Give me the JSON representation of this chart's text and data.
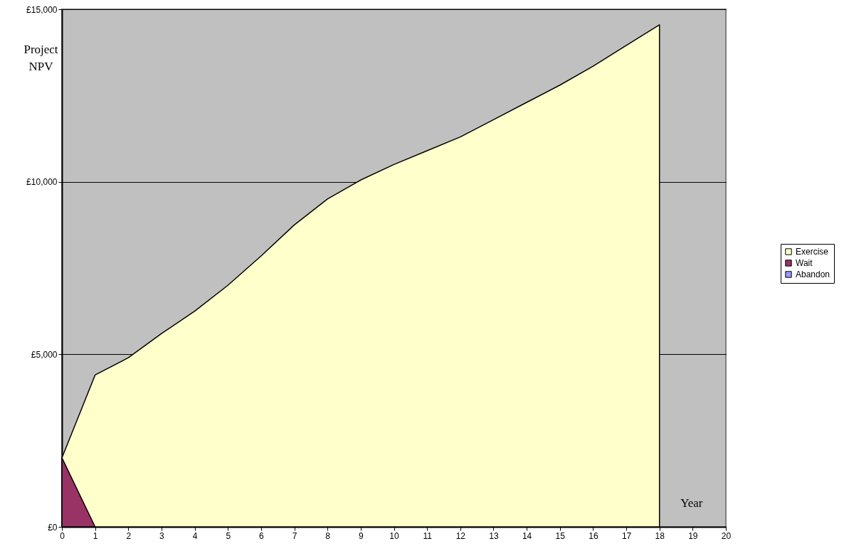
{
  "chart_data": {
    "type": "area",
    "xlabel": "Year",
    "ylabel": "Project NPV",
    "x": [
      0,
      1,
      2,
      3,
      4,
      5,
      6,
      7,
      8,
      9,
      10,
      11,
      12,
      13,
      14,
      15,
      16,
      17,
      18
    ],
    "xlim": [
      0,
      20
    ],
    "xticks": [
      0,
      1,
      2,
      3,
      4,
      5,
      6,
      7,
      8,
      9,
      10,
      11,
      12,
      13,
      14,
      15,
      16,
      17,
      18,
      19,
      20
    ],
    "ylim": [
      0,
      15000
    ],
    "yticks": [
      {
        "value": 0,
        "label": "£0"
      },
      {
        "value": 5000,
        "label": "£5,000"
      },
      {
        "value": 10000,
        "label": "£10,000"
      },
      {
        "value": 15000,
        "label": "£15,000"
      }
    ],
    "series": [
      {
        "name": "Exercise",
        "color": "#ffffcc",
        "values": [
          2000,
          4400,
          4900,
          5600,
          6250,
          7000,
          7850,
          8750,
          9500,
          10050,
          10500,
          10900,
          11300,
          11800,
          12300,
          12800,
          13350,
          13950,
          14550
        ]
      },
      {
        "name": "Wait",
        "color": "#993366",
        "values": [
          2000,
          0,
          null,
          null,
          null,
          null,
          null,
          null,
          null,
          null,
          null,
          null,
          null,
          null,
          null,
          null,
          null,
          null,
          null
        ]
      },
      {
        "name": "Abandon",
        "color": "#9999ff",
        "values": [
          null,
          null,
          null,
          null,
          null,
          null,
          null,
          null,
          null,
          null,
          null,
          null,
          null,
          null,
          null,
          null,
          null,
          null,
          null
        ]
      }
    ],
    "grid": "y",
    "legend": "right"
  }
}
